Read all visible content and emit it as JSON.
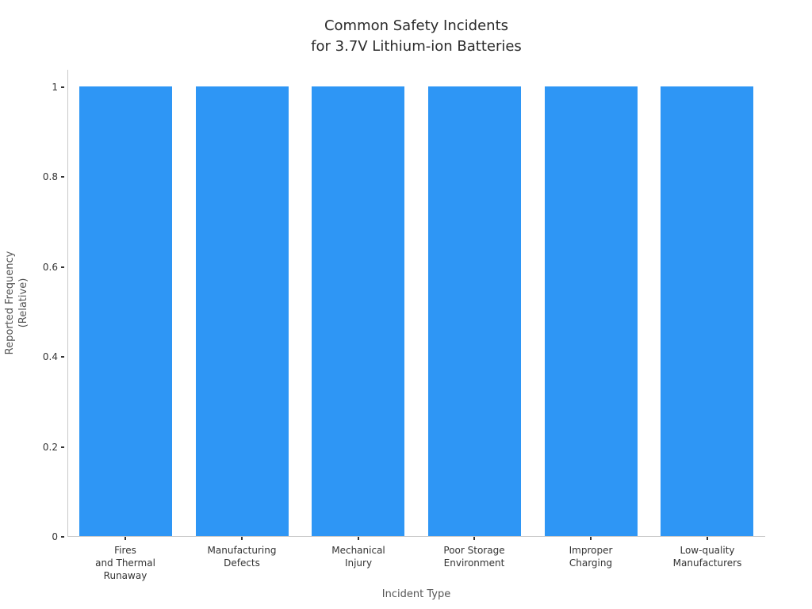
{
  "chart_data": {
    "type": "bar",
    "title": "Common Safety Incidents\nfor 3.7V Lithium-ion Batteries",
    "categories": [
      "Fires\nand Thermal\nRunaway",
      "Manufacturing\nDefects",
      "Mechanical\nInjury",
      "Poor Storage\nEnvironment",
      "Improper\nCharging",
      "Low-quality\nManufacturers"
    ],
    "values": [
      1,
      1,
      1,
      1,
      1,
      1
    ],
    "xlabel": "Incident Type",
    "ylabel": "Reported Frequency\n(Relative)",
    "yticks": [
      "1",
      "0.8",
      "0.6",
      "0.4",
      "0.2",
      "0"
    ],
    "ylim": [
      0,
      1.05
    ],
    "bar_color": "#2E96F5",
    "axis_color": "#c9c9c9",
    "tick_color": "#333333",
    "label_color": "#555555",
    "grid": false,
    "legend": false
  }
}
